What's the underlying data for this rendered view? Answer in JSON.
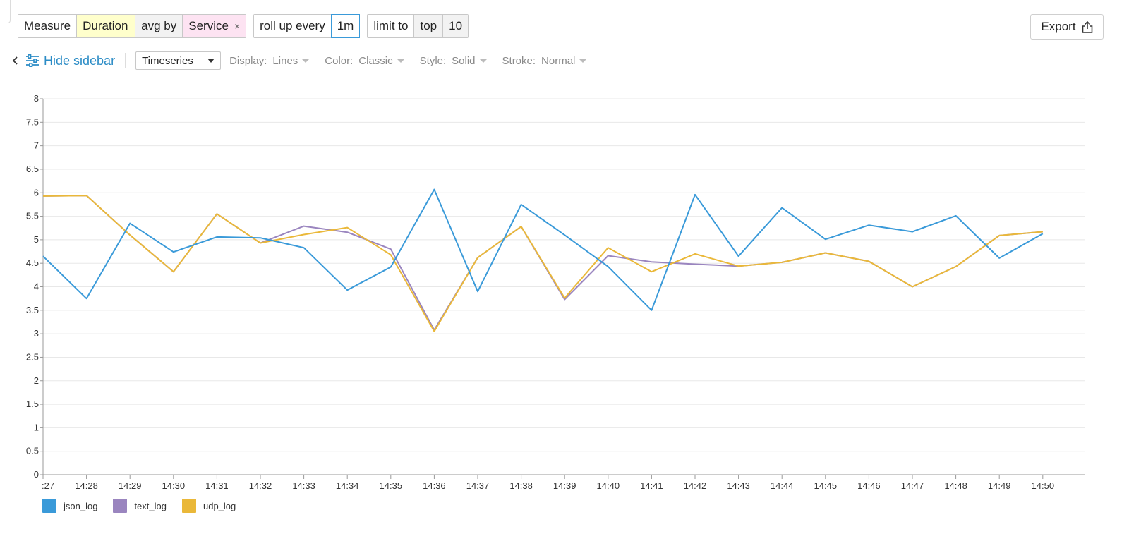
{
  "querybar": {
    "measure_label": "Measure",
    "measure_value": "Duration",
    "aggregate_label": "avg by",
    "group_value": "Service",
    "group_remove": "×",
    "rollup_label": "roll up every",
    "rollup_value": "1m",
    "limit_label": "limit to",
    "limit_order": "top",
    "limit_value": "10"
  },
  "export": {
    "label": "Export"
  },
  "toolbar": {
    "hide_sidebar": "Hide sidebar",
    "view_select": "Timeseries",
    "display_label": "Display:",
    "display_value": "Lines",
    "color_label": "Color:",
    "color_value": "Classic",
    "style_label": "Style:",
    "style_value": "Solid",
    "stroke_label": "Stroke:",
    "stroke_value": "Normal"
  },
  "chart_data": {
    "type": "line",
    "x": [
      ":27",
      "14:28",
      "14:29",
      "14:30",
      "14:31",
      "14:32",
      "14:33",
      "14:34",
      "14:35",
      "14:36",
      "14:37",
      "14:38",
      "14:39",
      "14:40",
      "14:41",
      "14:42",
      "14:43",
      "14:44",
      "14:45",
      "14:46",
      "14:47",
      "14:48",
      "14:49",
      "14:50"
    ],
    "ylim": [
      0,
      8
    ],
    "yticks": [
      "0",
      "0.5",
      "1",
      "1.5",
      "2",
      "2.5",
      "3",
      "3.5",
      "4",
      "4.5",
      "5",
      "5.5",
      "6",
      "6.5",
      "7",
      "7.5",
      "8"
    ],
    "grid": true,
    "legend_position": "bottom-left",
    "series": [
      {
        "name": "json_log",
        "color": "#3a9ad9",
        "values": [
          4.65,
          3.75,
          5.35,
          4.74,
          5.06,
          5.04,
          4.83,
          3.93,
          4.42,
          6.07,
          3.9,
          5.75,
          5.1,
          4.43,
          3.5,
          5.96,
          4.65,
          5.68,
          5.01,
          5.31,
          5.17,
          5.51,
          4.61,
          5.13
        ]
      },
      {
        "name": "text_log",
        "color": "#9a85bf",
        "values": [
          5.93,
          5.94,
          5.1,
          4.32,
          5.55,
          4.93,
          5.29,
          5.16,
          4.8,
          3.08,
          4.62,
          5.28,
          3.73,
          4.66,
          4.53,
          4.48,
          4.44,
          4.52,
          4.72,
          4.54,
          4.0,
          4.43,
          5.09,
          5.17
        ]
      },
      {
        "name": "udp_log",
        "color": "#eab839",
        "values": [
          5.93,
          5.94,
          5.1,
          4.32,
          5.55,
          4.93,
          5.11,
          5.26,
          4.68,
          3.05,
          4.62,
          5.28,
          3.76,
          4.83,
          4.32,
          4.7,
          4.44,
          4.52,
          4.72,
          4.54,
          4.0,
          4.43,
          5.09,
          5.17
        ]
      }
    ]
  }
}
